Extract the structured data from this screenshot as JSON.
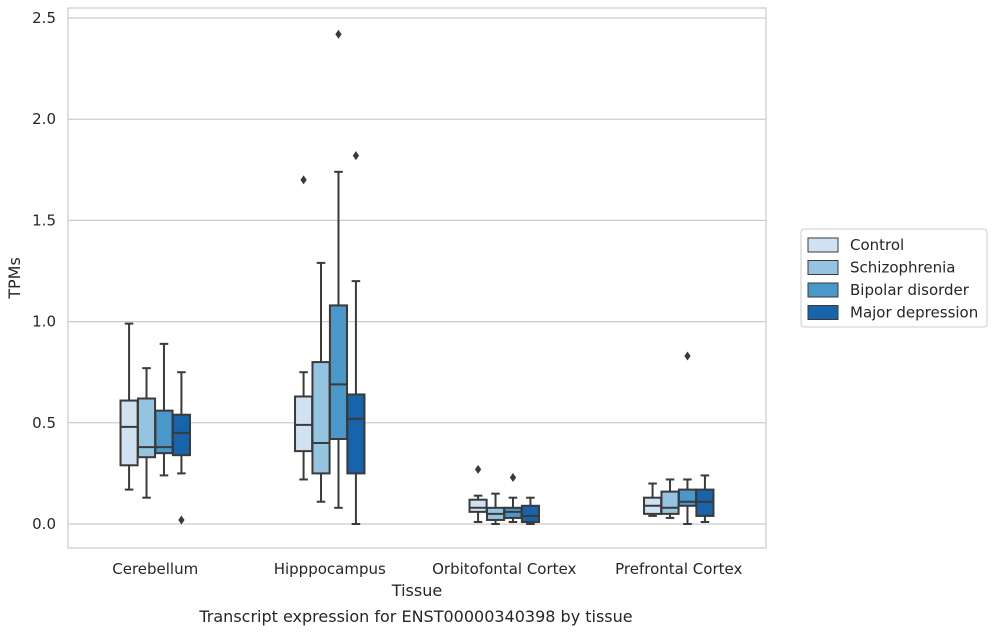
{
  "chart_data": {
    "type": "box",
    "caption": "Transcript expression for ENST00000340398 by tissue",
    "xlabel": "Tissue",
    "ylabel": "TPMs",
    "ylim": [
      -0.12,
      2.55
    ],
    "yticks": [
      0.0,
      0.5,
      1.0,
      1.5,
      2.0,
      2.5
    ],
    "ytick_labels": [
      "0.0",
      "0.5",
      "1.0",
      "1.5",
      "2.0",
      "2.5"
    ],
    "grid": "horizontal",
    "legend_position": "right",
    "categories": [
      "Cerebellum",
      "Hipppocampus",
      "Orbitofontal Cortex",
      "Prefrontal Cortex"
    ],
    "series": [
      {
        "name": "Control",
        "color": "#d0e1f2",
        "boxes": [
          {
            "whislo": 0.17,
            "q1": 0.29,
            "med": 0.48,
            "q3": 0.61,
            "whishi": 0.99,
            "fliers": []
          },
          {
            "whislo": 0.22,
            "q1": 0.36,
            "med": 0.49,
            "q3": 0.63,
            "whishi": 0.75,
            "fliers": [
              1.7
            ]
          },
          {
            "whislo": 0.01,
            "q1": 0.06,
            "med": 0.08,
            "q3": 0.12,
            "whishi": 0.14,
            "fliers": [
              0.27
            ]
          },
          {
            "whislo": 0.04,
            "q1": 0.05,
            "med": 0.09,
            "q3": 0.13,
            "whishi": 0.2,
            "fliers": []
          }
        ]
      },
      {
        "name": "Schizophrenia",
        "color": "#94c4df",
        "boxes": [
          {
            "whislo": 0.13,
            "q1": 0.33,
            "med": 0.38,
            "q3": 0.62,
            "whishi": 0.77,
            "fliers": []
          },
          {
            "whislo": 0.11,
            "q1": 0.25,
            "med": 0.4,
            "q3": 0.8,
            "whishi": 1.29,
            "fliers": []
          },
          {
            "whislo": 0.0,
            "q1": 0.02,
            "med": 0.05,
            "q3": 0.08,
            "whishi": 0.15,
            "fliers": []
          },
          {
            "whislo": 0.03,
            "q1": 0.05,
            "med": 0.08,
            "q3": 0.16,
            "whishi": 0.22,
            "fliers": []
          }
        ]
      },
      {
        "name": "Bipolar disorder",
        "color": "#4a98c9",
        "boxes": [
          {
            "whislo": 0.24,
            "q1": 0.35,
            "med": 0.38,
            "q3": 0.56,
            "whishi": 0.89,
            "fliers": []
          },
          {
            "whislo": 0.08,
            "q1": 0.42,
            "med": 0.69,
            "q3": 1.08,
            "whishi": 1.74,
            "fliers": [
              2.42
            ]
          },
          {
            "whislo": 0.01,
            "q1": 0.03,
            "med": 0.06,
            "q3": 0.08,
            "whishi": 0.13,
            "fliers": [
              0.23
            ]
          },
          {
            "whislo": 0.0,
            "q1": 0.09,
            "med": 0.11,
            "q3": 0.17,
            "whishi": 0.22,
            "fliers": [
              0.83
            ]
          }
        ]
      },
      {
        "name": "Major depression",
        "color": "#1764ab",
        "boxes": [
          {
            "whislo": 0.25,
            "q1": 0.34,
            "med": 0.45,
            "q3": 0.54,
            "whishi": 0.75,
            "fliers": [
              0.02
            ]
          },
          {
            "whislo": 0.0,
            "q1": 0.25,
            "med": 0.52,
            "q3": 0.64,
            "whishi": 1.2,
            "fliers": [
              1.82
            ]
          },
          {
            "whislo": 0.0,
            "q1": 0.01,
            "med": 0.04,
            "q3": 0.09,
            "whishi": 0.13,
            "fliers": []
          },
          {
            "whislo": 0.01,
            "q1": 0.04,
            "med": 0.11,
            "q3": 0.17,
            "whishi": 0.24,
            "fliers": []
          }
        ]
      }
    ]
  }
}
